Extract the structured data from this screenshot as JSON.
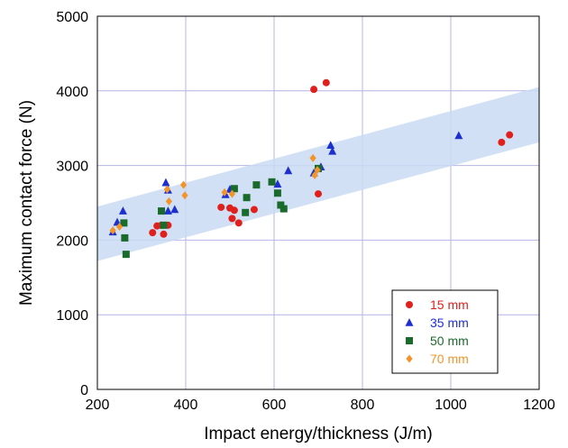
{
  "chart_data": {
    "type": "scatter",
    "title": "",
    "xlabel": "Impact energy/thickness (J/m)",
    "ylabel": "Maximum contact force (N)",
    "xlim": [
      200,
      1200
    ],
    "ylim": [
      0,
      5000
    ],
    "xticks": [
      200,
      400,
      600,
      800,
      1000,
      1200
    ],
    "yticks": [
      0,
      1000,
      2000,
      3000,
      4000,
      5000
    ],
    "xtick_labels": [
      "200",
      "400",
      "600",
      "800",
      "1000",
      "1200"
    ],
    "ytick_labels": [
      "0",
      "1000",
      "2000",
      "3000",
      "4000",
      "5000"
    ],
    "grid": true,
    "legend_position": "bottom-right",
    "band": {
      "color": "#c9daf2",
      "lower": [
        [
          200,
          1720
        ],
        [
          1200,
          3310
        ]
      ],
      "upper": [
        [
          200,
          2450
        ],
        [
          1200,
          4050
        ]
      ]
    },
    "series": [
      {
        "name": "15 mm",
        "marker": "circle",
        "color": "#e0201c",
        "points": [
          [
            325,
            2100
          ],
          [
            335,
            2190
          ],
          [
            345,
            2200
          ],
          [
            350,
            2080
          ],
          [
            360,
            2200
          ],
          [
            480,
            2440
          ],
          [
            500,
            2430
          ],
          [
            505,
            2290
          ],
          [
            510,
            2400
          ],
          [
            520,
            2230
          ],
          [
            555,
            2410
          ],
          [
            690,
            4020
          ],
          [
            700,
            2620
          ],
          [
            718,
            4110
          ],
          [
            1115,
            3310
          ],
          [
            1133,
            3410
          ]
        ]
      },
      {
        "name": "35 mm",
        "marker": "triangle",
        "color": "#1e2fd0",
        "points": [
          [
            235,
            2110
          ],
          [
            245,
            2240
          ],
          [
            258,
            2390
          ],
          [
            355,
            2770
          ],
          [
            360,
            2670
          ],
          [
            360,
            2390
          ],
          [
            375,
            2410
          ],
          [
            490,
            2610
          ],
          [
            500,
            2680
          ],
          [
            608,
            2750
          ],
          [
            632,
            2930
          ],
          [
            690,
            2900
          ],
          [
            706,
            2980
          ],
          [
            728,
            3270
          ],
          [
            732,
            3190
          ],
          [
            1018,
            3400
          ]
        ]
      },
      {
        "name": "50 mm",
        "marker": "square",
        "color": "#1a6b2b",
        "points": [
          [
            260,
            2230
          ],
          [
            262,
            2030
          ],
          [
            265,
            1810
          ],
          [
            345,
            2390
          ],
          [
            350,
            2200
          ],
          [
            510,
            2690
          ],
          [
            535,
            2370
          ],
          [
            538,
            2570
          ],
          [
            560,
            2740
          ],
          [
            595,
            2780
          ],
          [
            608,
            2630
          ],
          [
            615,
            2470
          ],
          [
            622,
            2420
          ],
          [
            700,
            2960
          ]
        ]
      },
      {
        "name": "70 mm",
        "marker": "diamond",
        "color": "#f2942a",
        "points": [
          [
            235,
            2130
          ],
          [
            250,
            2180
          ],
          [
            358,
            2680
          ],
          [
            362,
            2520
          ],
          [
            395,
            2740
          ],
          [
            398,
            2600
          ],
          [
            488,
            2640
          ],
          [
            505,
            2620
          ],
          [
            688,
            3100
          ],
          [
            692,
            2870
          ],
          [
            698,
            2940
          ]
        ]
      }
    ]
  }
}
